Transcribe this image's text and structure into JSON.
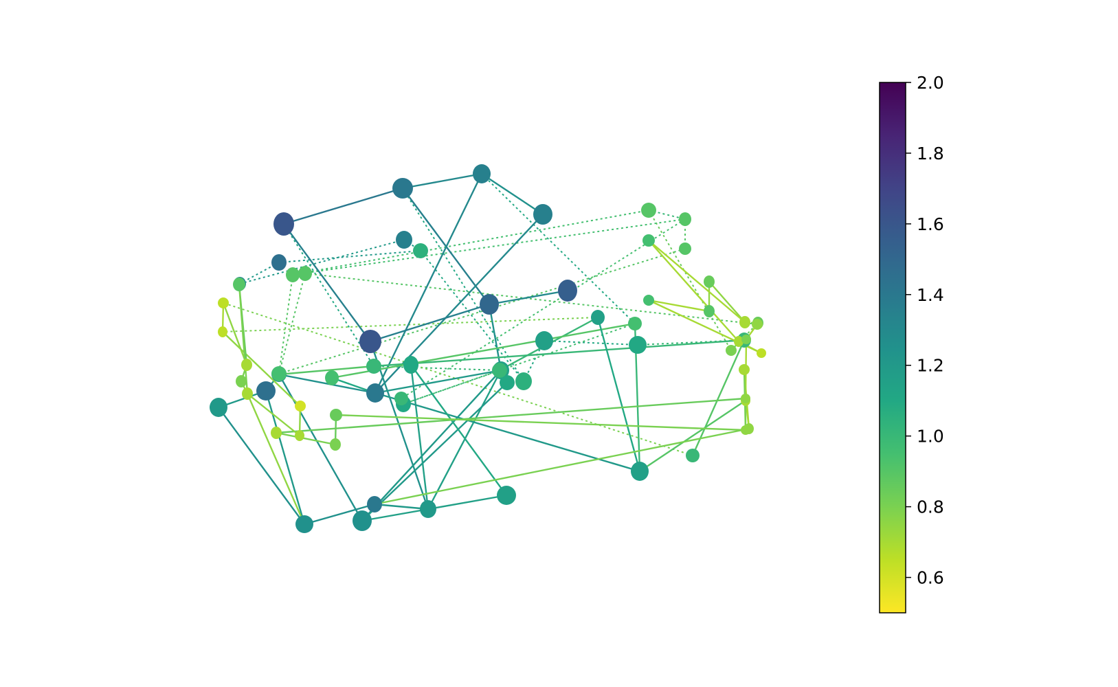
{
  "chart_data": {
    "type": "network",
    "colorbar": {
      "colormap": "viridis",
      "range": [
        0.5,
        2.0
      ],
      "ticks": [
        "0.6",
        "0.8",
        "1.0",
        "1.2",
        "1.4",
        "1.6",
        "1.8",
        "2.0"
      ]
    },
    "nodes": [
      {
        "id": 0,
        "value": 1.6
      },
      {
        "id": 1,
        "value": 1.4
      },
      {
        "id": 2,
        "value": 1.35
      },
      {
        "id": 3,
        "value": 1.35
      },
      {
        "id": 4,
        "value": 1.55
      },
      {
        "id": 5,
        "value": 1.5
      },
      {
        "id": 6,
        "value": 1.6
      },
      {
        "id": 7,
        "value": 1.45
      },
      {
        "id": 8,
        "value": 1.3
      },
      {
        "id": 9,
        "value": 1.2
      },
      {
        "id": 10,
        "value": 1.45
      },
      {
        "id": 11,
        "value": 1.3
      },
      {
        "id": 12,
        "value": 1.25
      },
      {
        "id": 13,
        "value": 1.25
      },
      {
        "id": 14,
        "value": 1.4
      },
      {
        "id": 15,
        "value": 1.4
      },
      {
        "id": 16,
        "value": 1.2
      },
      {
        "id": 17,
        "value": 1.35
      },
      {
        "id": 18,
        "value": 1.15
      },
      {
        "id": 19,
        "value": 1.1
      },
      {
        "id": 20,
        "value": 1.05
      },
      {
        "id": 21,
        "value": 1.05
      },
      {
        "id": 22,
        "value": 1.15
      },
      {
        "id": 23,
        "value": 1.15
      },
      {
        "id": 24,
        "value": 1.1
      },
      {
        "id": 25,
        "value": 1.1
      },
      {
        "id": 26,
        "value": 1.15
      },
      {
        "id": 27,
        "value": 1.0
      },
      {
        "id": 28,
        "value": 0.9
      },
      {
        "id": 29,
        "value": 0.9
      },
      {
        "id": 30,
        "value": 1.0
      },
      {
        "id": 31,
        "value": 1.0
      },
      {
        "id": 32,
        "value": 1.15
      },
      {
        "id": 33,
        "value": 1.0
      },
      {
        "id": 34,
        "value": 1.1
      },
      {
        "id": 35,
        "value": 1.0
      },
      {
        "id": 36,
        "value": 0.95
      },
      {
        "id": 37,
        "value": 0.95
      },
      {
        "id": 38,
        "value": 0.7
      },
      {
        "id": 39,
        "value": 0.85
      },
      {
        "id": 40,
        "value": 0.9
      },
      {
        "id": 41,
        "value": 0.9
      },
      {
        "id": 42,
        "value": 0.95
      },
      {
        "id": 43,
        "value": 0.95
      },
      {
        "id": 44,
        "value": 0.7
      },
      {
        "id": 45,
        "value": 0.65
      },
      {
        "id": 46,
        "value": 0.8
      },
      {
        "id": 47,
        "value": 0.85
      },
      {
        "id": 48,
        "value": 0.7
      },
      {
        "id": 49,
        "value": 0.7
      },
      {
        "id": 50,
        "value": 0.75
      },
      {
        "id": 51,
        "value": 0.8
      },
      {
        "id": 52,
        "value": 0.75
      },
      {
        "id": 53,
        "value": 0.75
      },
      {
        "id": 54,
        "value": 0.75
      },
      {
        "id": 55,
        "value": 0.9
      },
      {
        "id": 56,
        "value": 0.9
      },
      {
        "id": 57,
        "value": 0.95
      },
      {
        "id": 58,
        "value": 0.7
      },
      {
        "id": 59,
        "value": 0.8
      },
      {
        "id": 60,
        "value": 0.65
      },
      {
        "id": 61,
        "value": 0.65
      },
      {
        "id": 62,
        "value": 0.7
      },
      {
        "id": 63,
        "value": 0.7
      },
      {
        "id": 64,
        "value": 0.9
      },
      {
        "id": 65,
        "value": 0.6
      },
      {
        "id": 66,
        "value": 0.7
      },
      {
        "id": 67,
        "value": 0.8
      },
      {
        "id": 68,
        "value": 0.85
      }
    ],
    "edges": [
      {
        "from": 0,
        "to": 1,
        "value": 1.4
      },
      {
        "from": 1,
        "to": 2,
        "value": 1.3
      },
      {
        "from": 0,
        "to": 6,
        "value": 1.35
      },
      {
        "from": 1,
        "to": 5,
        "value": 1.35
      },
      {
        "from": 2,
        "to": 3,
        "value": 1.25
      },
      {
        "from": 2,
        "to": 15,
        "value": 1.3
      },
      {
        "from": 3,
        "to": 15,
        "value": 1.3
      },
      {
        "from": 6,
        "to": 5,
        "value": 1.35
      },
      {
        "from": 5,
        "to": 4,
        "value": 1.3
      },
      {
        "from": 6,
        "to": 16,
        "value": 1.25
      },
      {
        "from": 5,
        "to": 18,
        "value": 1.25
      },
      {
        "from": 16,
        "to": 18,
        "value": 1.15
      },
      {
        "from": 18,
        "to": 15,
        "value": 1.2
      },
      {
        "from": 16,
        "to": 24,
        "value": 1.15
      },
      {
        "from": 16,
        "to": 14,
        "value": 1.2
      },
      {
        "from": 18,
        "to": 19,
        "value": 1.2
      },
      {
        "from": 18,
        "to": 13,
        "value": 1.2
      },
      {
        "from": 19,
        "to": 13,
        "value": 1.2
      },
      {
        "from": 15,
        "to": 11,
        "value": 1.25
      },
      {
        "from": 15,
        "to": 26,
        "value": 1.2
      },
      {
        "from": 24,
        "to": 22,
        "value": 1.1
      },
      {
        "from": 22,
        "to": 13,
        "value": 1.15
      },
      {
        "from": 13,
        "to": 11,
        "value": 1.25
      },
      {
        "from": 11,
        "to": 10,
        "value": 1.2
      },
      {
        "from": 10,
        "to": 12,
        "value": 1.2
      },
      {
        "from": 12,
        "to": 9,
        "value": 1.25
      },
      {
        "from": 9,
        "to": 10,
        "value": 1.2
      },
      {
        "from": 12,
        "to": 14,
        "value": 1.25
      },
      {
        "from": 31,
        "to": 32,
        "value": 1.0
      },
      {
        "from": 11,
        "to": 30,
        "value": 0.9
      },
      {
        "from": 30,
        "to": 27,
        "value": 1.0
      },
      {
        "from": 27,
        "to": 33,
        "value": 0.9
      },
      {
        "from": 15,
        "to": 37,
        "value": 1.1
      },
      {
        "from": 37,
        "to": 36,
        "value": 0.9
      },
      {
        "from": 26,
        "to": 36,
        "value": 1.0
      },
      {
        "from": 26,
        "to": 32,
        "value": 1.1
      },
      {
        "from": 26,
        "to": 49,
        "value": 0.9
      },
      {
        "from": 14,
        "to": 54,
        "value": 0.8
      },
      {
        "from": 54,
        "to": 48,
        "value": 0.7
      },
      {
        "from": 54,
        "to": 53,
        "value": 0.7
      },
      {
        "from": 53,
        "to": 51,
        "value": 0.7
      },
      {
        "from": 51,
        "to": 52,
        "value": 0.7
      },
      {
        "from": 48,
        "to": 50,
        "value": 0.8
      },
      {
        "from": 50,
        "to": 53,
        "value": 0.8
      },
      {
        "from": 53,
        "to": 63,
        "value": 0.85
      },
      {
        "from": 63,
        "to": 67,
        "value": 0.8
      },
      {
        "from": 67,
        "to": 68,
        "value": 0.85
      },
      {
        "from": 68,
        "to": 50,
        "value": 0.8
      },
      {
        "from": 38,
        "to": 39,
        "value": 0.75
      },
      {
        "from": 39,
        "to": 40,
        "value": 0.75
      },
      {
        "from": 40,
        "to": 43,
        "value": 0.7
      },
      {
        "from": 43,
        "to": 45,
        "value": 0.7
      },
      {
        "from": 45,
        "to": 44,
        "value": 0.7
      },
      {
        "from": 44,
        "to": 42,
        "value": 0.7
      },
      {
        "from": 38,
        "to": 42,
        "value": 0.7
      },
      {
        "from": 12,
        "to": 62,
        "value": 0.75
      },
      {
        "from": 62,
        "to": 66,
        "value": 0.75
      },
      {
        "from": 66,
        "to": 65,
        "value": 0.75
      },
      {
        "from": 65,
        "to": 60,
        "value": 0.75
      },
      {
        "from": 60,
        "to": 61,
        "value": 0.7
      },
      {
        "from": 61,
        "to": 58,
        "value": 0.75
      },
      {
        "from": 58,
        "to": 59,
        "value": 0.8
      },
      {
        "from": 59,
        "to": 62,
        "value": 0.75
      },
      {
        "from": 58,
        "to": 64,
        "value": 0.85
      },
      {
        "from": 64,
        "to": 62,
        "value": 0.8
      }
    ],
    "dashed_edges": [
      {
        "from": 7,
        "to": 8,
        "value": 1.2
      },
      {
        "from": 8,
        "to": 17,
        "value": 1.2
      },
      {
        "from": 17,
        "to": 20,
        "value": 1.2
      },
      {
        "from": 7,
        "to": 20,
        "value": 1.2
      },
      {
        "from": 20,
        "to": 21,
        "value": 1.1
      },
      {
        "from": 21,
        "to": 23,
        "value": 1.1
      },
      {
        "from": 23,
        "to": 25,
        "value": 1.1
      },
      {
        "from": 25,
        "to": 27,
        "value": 1.0
      },
      {
        "from": 28,
        "to": 29,
        "value": 1.0
      },
      {
        "from": 29,
        "to": 35,
        "value": 0.95
      },
      {
        "from": 35,
        "to": 34,
        "value": 1.0
      },
      {
        "from": 34,
        "to": 31,
        "value": 1.0
      },
      {
        "from": 31,
        "to": 30,
        "value": 1.0
      },
      {
        "from": 36,
        "to": 34,
        "value": 0.95
      },
      {
        "from": 0,
        "to": 30,
        "value": 1.1
      },
      {
        "from": 1,
        "to": 21,
        "value": 1.1
      },
      {
        "from": 2,
        "to": 36,
        "value": 1.1
      },
      {
        "from": 28,
        "to": 46,
        "value": 0.85
      },
      {
        "from": 46,
        "to": 47,
        "value": 0.85
      },
      {
        "from": 47,
        "to": 38,
        "value": 0.8
      },
      {
        "from": 38,
        "to": 39,
        "value": 0.75
      },
      {
        "from": 56,
        "to": 57,
        "value": 0.9
      },
      {
        "from": 57,
        "to": 55,
        "value": 0.9
      },
      {
        "from": 29,
        "to": 41,
        "value": 0.9
      },
      {
        "from": 41,
        "to": 57,
        "value": 0.9
      },
      {
        "from": 55,
        "to": 52,
        "value": 0.9
      },
      {
        "from": 56,
        "to": 28,
        "value": 0.95
      },
      {
        "from": 29,
        "to": 56,
        "value": 0.95
      },
      {
        "from": 32,
        "to": 60,
        "value": 0.8
      },
      {
        "from": 33,
        "to": 61,
        "value": 0.8
      }
    ]
  }
}
